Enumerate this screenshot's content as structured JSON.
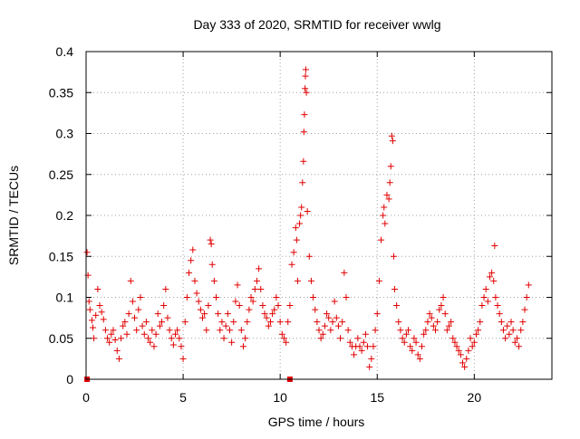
{
  "chart_data": {
    "type": "scatter",
    "title": "Day 333 of 2020, SRMTID for receiver wwlg",
    "xlabel": "GPS time / hours",
    "ylabel": "SRMTID / TECUs",
    "xlim": [
      0,
      24
    ],
    "ylim": [
      0,
      0.4
    ],
    "xticks": [
      0,
      5,
      10,
      15,
      20
    ],
    "xtick_labels": [
      "0",
      "5",
      "10",
      "15",
      "20"
    ],
    "yticks": [
      0,
      0.05,
      0.1,
      0.15,
      0.2,
      0.25,
      0.3,
      0.35,
      0.4
    ],
    "ytick_labels": [
      "0",
      "0.05",
      "0.1",
      "0.15",
      "0.2",
      "0.25",
      "0.3",
      "0.35",
      "0.4"
    ],
    "grid": true,
    "marker": "plus",
    "color": "#e00000",
    "square_markers": [
      [
        0.05,
        0.0
      ],
      [
        10.5,
        0.0
      ]
    ],
    "series": [
      {
        "name": "SRMTID",
        "points": [
          [
            0.05,
            0.155
          ],
          [
            0.1,
            0.127
          ],
          [
            0.15,
            0.095
          ],
          [
            0.2,
            0.085
          ],
          [
            0.3,
            0.072
          ],
          [
            0.35,
            0.063
          ],
          [
            0.4,
            0.05
          ],
          [
            0.5,
            0.078
          ],
          [
            0.6,
            0.11
          ],
          [
            0.7,
            0.09
          ],
          [
            0.8,
            0.082
          ],
          [
            0.9,
            0.073
          ],
          [
            1.0,
            0.06
          ],
          [
            1.1,
            0.05
          ],
          [
            1.2,
            0.045
          ],
          [
            1.3,
            0.055
          ],
          [
            1.4,
            0.06
          ],
          [
            1.5,
            0.048
          ],
          [
            1.6,
            0.035
          ],
          [
            1.7,
            0.025
          ],
          [
            1.8,
            0.05
          ],
          [
            1.9,
            0.065
          ],
          [
            2.0,
            0.07
          ],
          [
            2.1,
            0.055
          ],
          [
            2.2,
            0.08
          ],
          [
            2.3,
            0.12
          ],
          [
            2.4,
            0.095
          ],
          [
            2.5,
            0.075
          ],
          [
            2.6,
            0.06
          ],
          [
            2.7,
            0.085
          ],
          [
            2.8,
            0.1
          ],
          [
            2.9,
            0.065
          ],
          [
            3.0,
            0.055
          ],
          [
            3.1,
            0.07
          ],
          [
            3.2,
            0.05
          ],
          [
            3.3,
            0.045
          ],
          [
            3.4,
            0.06
          ],
          [
            3.5,
            0.04
          ],
          [
            3.6,
            0.055
          ],
          [
            3.7,
            0.08
          ],
          [
            3.8,
            0.065
          ],
          [
            3.9,
            0.07
          ],
          [
            4.0,
            0.09
          ],
          [
            4.1,
            0.11
          ],
          [
            4.2,
            0.075
          ],
          [
            4.3,
            0.06
          ],
          [
            4.4,
            0.05
          ],
          [
            4.5,
            0.042
          ],
          [
            4.6,
            0.055
          ],
          [
            4.7,
            0.06
          ],
          [
            4.8,
            0.05
          ],
          [
            4.9,
            0.04
          ],
          [
            5.0,
            0.025
          ],
          [
            5.1,
            0.07
          ],
          [
            5.2,
            0.1
          ],
          [
            5.3,
            0.13
          ],
          [
            5.4,
            0.145
          ],
          [
            5.5,
            0.158
          ],
          [
            5.6,
            0.12
          ],
          [
            5.7,
            0.105
          ],
          [
            5.8,
            0.095
          ],
          [
            5.9,
            0.085
          ],
          [
            6.0,
            0.075
          ],
          [
            6.1,
            0.08
          ],
          [
            6.2,
            0.06
          ],
          [
            6.3,
            0.09
          ],
          [
            6.4,
            0.17
          ],
          [
            6.45,
            0.165
          ],
          [
            6.5,
            0.14
          ],
          [
            6.6,
            0.12
          ],
          [
            6.7,
            0.1
          ],
          [
            6.8,
            0.08
          ],
          [
            6.9,
            0.06
          ],
          [
            7.0,
            0.07
          ],
          [
            7.1,
            0.05
          ],
          [
            7.2,
            0.065
          ],
          [
            7.3,
            0.08
          ],
          [
            7.4,
            0.06
          ],
          [
            7.5,
            0.045
          ],
          [
            7.6,
            0.07
          ],
          [
            7.7,
            0.095
          ],
          [
            7.8,
            0.115
          ],
          [
            7.9,
            0.09
          ],
          [
            8.0,
            0.06
          ],
          [
            8.1,
            0.04
          ],
          [
            8.2,
            0.05
          ],
          [
            8.3,
            0.07
          ],
          [
            8.4,
            0.085
          ],
          [
            8.5,
            0.1
          ],
          [
            8.6,
            0.095
          ],
          [
            8.7,
            0.11
          ],
          [
            8.8,
            0.12
          ],
          [
            8.9,
            0.135
          ],
          [
            9.0,
            0.11
          ],
          [
            9.1,
            0.09
          ],
          [
            9.2,
            0.08
          ],
          [
            9.3,
            0.075
          ],
          [
            9.4,
            0.065
          ],
          [
            9.5,
            0.07
          ],
          [
            9.6,
            0.08
          ],
          [
            9.7,
            0.085
          ],
          [
            9.8,
            0.1
          ],
          [
            9.9,
            0.09
          ],
          [
            10.0,
            0.07
          ],
          [
            10.1,
            0.055
          ],
          [
            10.2,
            0.05
          ],
          [
            10.3,
            0.045
          ],
          [
            10.4,
            0.07
          ],
          [
            10.5,
            0.09
          ],
          [
            10.6,
            0.14
          ],
          [
            10.7,
            0.155
          ],
          [
            10.8,
            0.185
          ],
          [
            10.85,
            0.17
          ],
          [
            10.9,
            0.12
          ],
          [
            11.0,
            0.19
          ],
          [
            11.05,
            0.2
          ],
          [
            11.1,
            0.21
          ],
          [
            11.15,
            0.24
          ],
          [
            11.2,
            0.266
          ],
          [
            11.22,
            0.302
          ],
          [
            11.25,
            0.323
          ],
          [
            11.28,
            0.355
          ],
          [
            11.3,
            0.37
          ],
          [
            11.32,
            0.378
          ],
          [
            11.35,
            0.35
          ],
          [
            11.4,
            0.205
          ],
          [
            11.5,
            0.15
          ],
          [
            11.6,
            0.12
          ],
          [
            11.7,
            0.1
          ],
          [
            11.8,
            0.085
          ],
          [
            11.9,
            0.07
          ],
          [
            12.0,
            0.06
          ],
          [
            12.1,
            0.05
          ],
          [
            12.2,
            0.055
          ],
          [
            12.3,
            0.065
          ],
          [
            12.4,
            0.08
          ],
          [
            12.5,
            0.075
          ],
          [
            12.6,
            0.06
          ],
          [
            12.7,
            0.07
          ],
          [
            12.8,
            0.095
          ],
          [
            12.9,
            0.075
          ],
          [
            13.0,
            0.065
          ],
          [
            13.1,
            0.05
          ],
          [
            13.2,
            0.07
          ],
          [
            13.3,
            0.13
          ],
          [
            13.4,
            0.1
          ],
          [
            13.5,
            0.06
          ],
          [
            13.6,
            0.045
          ],
          [
            13.7,
            0.04
          ],
          [
            13.8,
            0.03
          ],
          [
            13.9,
            0.04
          ],
          [
            14.0,
            0.05
          ],
          [
            14.1,
            0.04
          ],
          [
            14.2,
            0.035
          ],
          [
            14.3,
            0.045
          ],
          [
            14.4,
            0.055
          ],
          [
            14.5,
            0.04
          ],
          [
            14.6,
            0.015
          ],
          [
            14.7,
            0.025
          ],
          [
            14.8,
            0.04
          ],
          [
            14.9,
            0.06
          ],
          [
            15.0,
            0.08
          ],
          [
            15.1,
            0.12
          ],
          [
            15.2,
            0.17
          ],
          [
            15.3,
            0.2
          ],
          [
            15.35,
            0.21
          ],
          [
            15.4,
            0.19
          ],
          [
            15.5,
            0.225
          ],
          [
            15.6,
            0.22
          ],
          [
            15.65,
            0.24
          ],
          [
            15.7,
            0.26
          ],
          [
            15.75,
            0.297
          ],
          [
            15.8,
            0.291
          ],
          [
            15.85,
            0.15
          ],
          [
            15.9,
            0.11
          ],
          [
            16.0,
            0.09
          ],
          [
            16.1,
            0.07
          ],
          [
            16.2,
            0.06
          ],
          [
            16.3,
            0.05
          ],
          [
            16.4,
            0.045
          ],
          [
            16.5,
            0.055
          ],
          [
            16.6,
            0.06
          ],
          [
            16.7,
            0.04
          ],
          [
            16.8,
            0.035
          ],
          [
            16.9,
            0.05
          ],
          [
            17.0,
            0.045
          ],
          [
            17.1,
            0.03
          ],
          [
            17.2,
            0.025
          ],
          [
            17.3,
            0.04
          ],
          [
            17.4,
            0.055
          ],
          [
            17.5,
            0.06
          ],
          [
            17.6,
            0.07
          ],
          [
            17.7,
            0.08
          ],
          [
            17.8,
            0.075
          ],
          [
            17.9,
            0.065
          ],
          [
            18.0,
            0.06
          ],
          [
            18.1,
            0.07
          ],
          [
            18.2,
            0.085
          ],
          [
            18.3,
            0.09
          ],
          [
            18.4,
            0.1
          ],
          [
            18.5,
            0.08
          ],
          [
            18.6,
            0.06
          ],
          [
            18.7,
            0.065
          ],
          [
            18.8,
            0.07
          ],
          [
            18.9,
            0.05
          ],
          [
            19.0,
            0.045
          ],
          [
            19.1,
            0.04
          ],
          [
            19.2,
            0.035
          ],
          [
            19.3,
            0.03
          ],
          [
            19.4,
            0.02
          ],
          [
            19.5,
            0.015
          ],
          [
            19.6,
            0.025
          ],
          [
            19.7,
            0.035
          ],
          [
            19.8,
            0.05
          ],
          [
            19.9,
            0.04
          ],
          [
            20.0,
            0.045
          ],
          [
            20.1,
            0.055
          ],
          [
            20.2,
            0.06
          ],
          [
            20.3,
            0.07
          ],
          [
            20.4,
            0.09
          ],
          [
            20.5,
            0.1
          ],
          [
            20.6,
            0.11
          ],
          [
            20.7,
            0.095
          ],
          [
            20.8,
            0.125
          ],
          [
            20.9,
            0.13
          ],
          [
            21.0,
            0.12
          ],
          [
            21.05,
            0.163
          ],
          [
            21.1,
            0.1
          ],
          [
            21.2,
            0.09
          ],
          [
            21.3,
            0.08
          ],
          [
            21.4,
            0.07
          ],
          [
            21.5,
            0.06
          ],
          [
            21.6,
            0.05
          ],
          [
            21.7,
            0.065
          ],
          [
            21.8,
            0.055
          ],
          [
            21.9,
            0.07
          ],
          [
            22.0,
            0.06
          ],
          [
            22.1,
            0.045
          ],
          [
            22.2,
            0.05
          ],
          [
            22.3,
            0.04
          ],
          [
            22.4,
            0.06
          ],
          [
            22.5,
            0.07
          ],
          [
            22.6,
            0.085
          ],
          [
            22.7,
            0.1
          ],
          [
            22.8,
            0.115
          ]
        ]
      }
    ]
  }
}
